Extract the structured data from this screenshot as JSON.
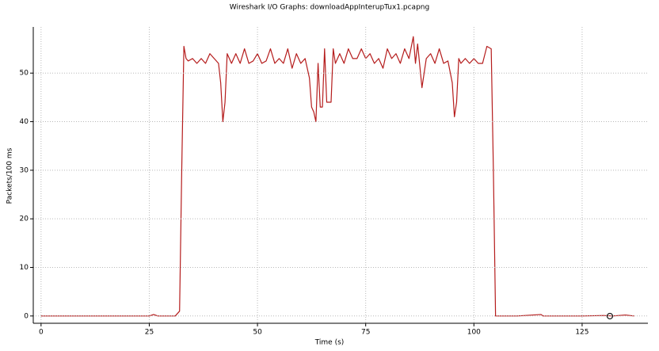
{
  "chart_data": {
    "type": "line",
    "title": "Wireshark I/O Graphs: downloadAppInterupTux1.pcapng",
    "x_label": "Time (s)",
    "y_label": "Packets/100 ms",
    "x": [
      0,
      25,
      26,
      27,
      31,
      32,
      32.5,
      33,
      33.5,
      34,
      35,
      36,
      37,
      38,
      39,
      40,
      41,
      41.5,
      42,
      42.5,
      43,
      44,
      45,
      46,
      47,
      48,
      49,
      50,
      51,
      52,
      53,
      54,
      55,
      56,
      57,
      58,
      59,
      60,
      61,
      62,
      62.5,
      63,
      63.5,
      64,
      64.5,
      65,
      65.5,
      66,
      67,
      67.5,
      68,
      69,
      70,
      71,
      72,
      73,
      74,
      75,
      76,
      77,
      78,
      79,
      80,
      81,
      82,
      83,
      84,
      85,
      86,
      86.5,
      87,
      88,
      89,
      90,
      91,
      92,
      93,
      94,
      95,
      95.5,
      96,
      96.5,
      97,
      98,
      99,
      100,
      101,
      102,
      103,
      104,
      104.5,
      105,
      110,
      115.5,
      116,
      120,
      125,
      130,
      132,
      135,
      137
    ],
    "values": [
      0,
      0,
      0.3,
      0,
      0,
      1,
      30,
      55.5,
      53,
      52.5,
      53,
      52,
      53,
      52,
      54,
      53,
      52,
      48,
      40,
      44,
      54,
      52,
      54,
      52,
      55,
      52,
      52.5,
      54,
      52,
      52.5,
      55,
      52,
      53,
      52,
      55,
      51,
      54,
      52,
      53,
      49,
      43,
      42,
      40,
      52,
      43,
      43,
      55,
      44,
      44,
      55,
      52,
      54,
      52,
      55,
      53,
      53,
      55,
      53,
      54,
      52,
      53,
      51,
      55,
      53,
      54,
      52,
      55,
      53,
      57.5,
      52,
      56,
      47,
      53,
      54,
      52,
      55,
      52,
      52.5,
      48,
      41,
      44,
      53,
      52,
      53,
      52,
      53,
      52,
      52,
      55.5,
      55,
      30,
      0,
      0,
      0.3,
      0,
      0,
      0,
      0.1,
      0,
      0.2,
      0
    ],
    "color": "#b51c1c",
    "xlim": [
      -1.8,
      140.2
    ],
    "ylim": [
      -1.5,
      59.5
    ],
    "xticks": [
      0,
      25,
      50,
      75,
      100,
      125
    ],
    "yticks": [
      0,
      10,
      20,
      30,
      40,
      50
    ],
    "grid": true
  }
}
